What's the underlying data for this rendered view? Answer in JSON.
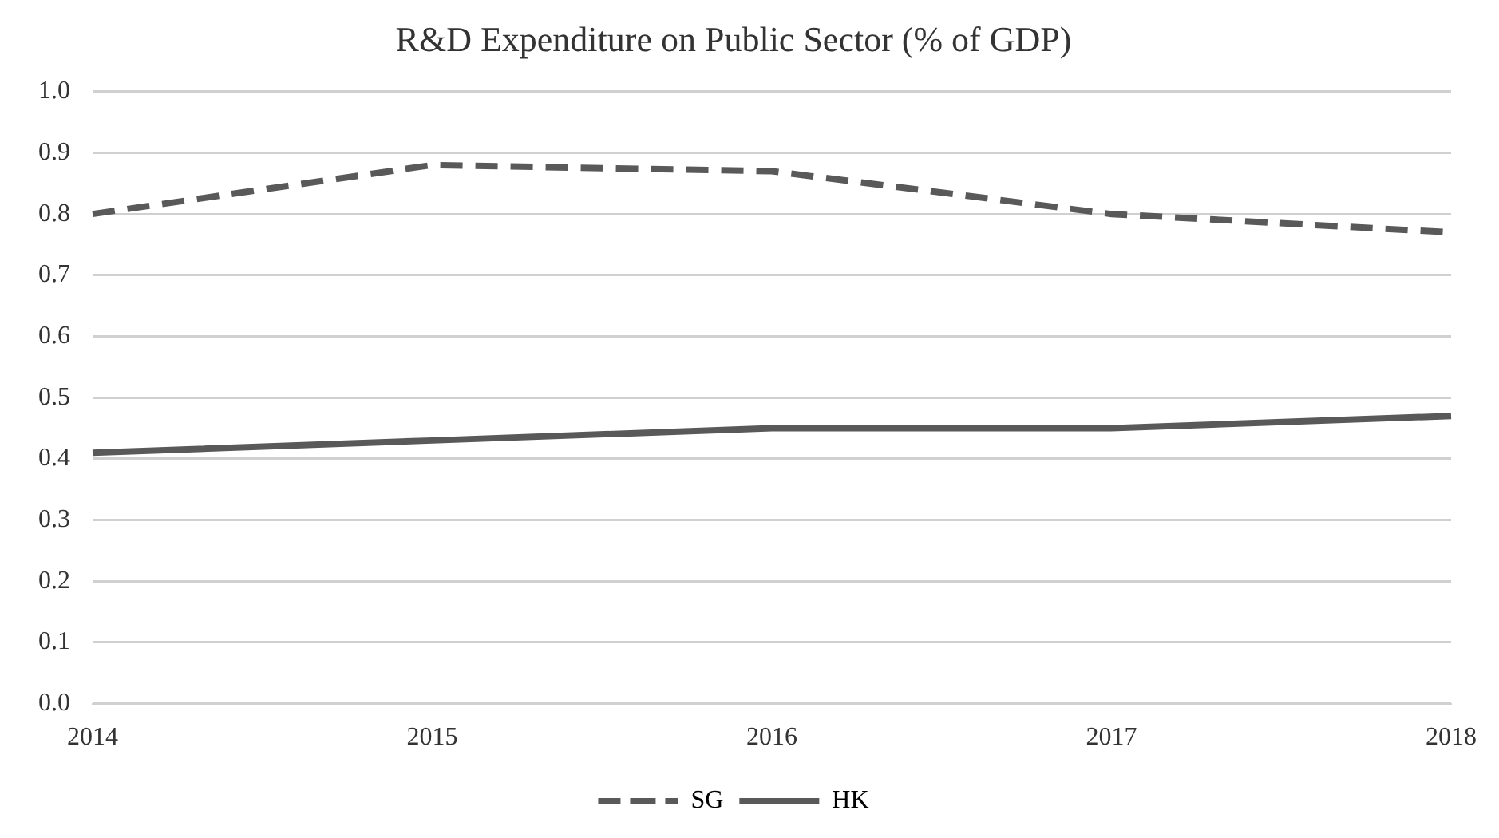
{
  "chart_data": {
    "type": "line",
    "title": "R&D Expenditure on Public Sector (% of GDP)",
    "categories": [
      "2014",
      "2015",
      "2016",
      "2017",
      "2018"
    ],
    "series": [
      {
        "name": "SG",
        "color": "#595959",
        "line_style": "dashed",
        "values": [
          0.8,
          0.88,
          0.87,
          0.8,
          0.77
        ]
      },
      {
        "name": "HK",
        "color": "#595959",
        "line_style": "solid",
        "values": [
          0.41,
          0.43,
          0.45,
          0.45,
          0.47
        ]
      }
    ],
    "ylim": [
      0,
      1
    ],
    "yticks": [
      {
        "value": 0,
        "label": "0.0"
      },
      {
        "value": 0.1,
        "label": "0.1"
      },
      {
        "value": 0.2,
        "label": "0.2"
      },
      {
        "value": 0.3,
        "label": "0.3"
      },
      {
        "value": 0.4,
        "label": "0.4"
      },
      {
        "value": 0.5,
        "label": "0.5"
      },
      {
        "value": 0.6,
        "label": "0.6"
      },
      {
        "value": 0.7,
        "label": "0.7"
      },
      {
        "value": 0.8,
        "label": "0.8"
      },
      {
        "value": 0.9,
        "label": "0.9"
      },
      {
        "value": 1,
        "label": "1.0"
      }
    ],
    "grid": "y",
    "legend": "bottom",
    "marker": "none"
  }
}
